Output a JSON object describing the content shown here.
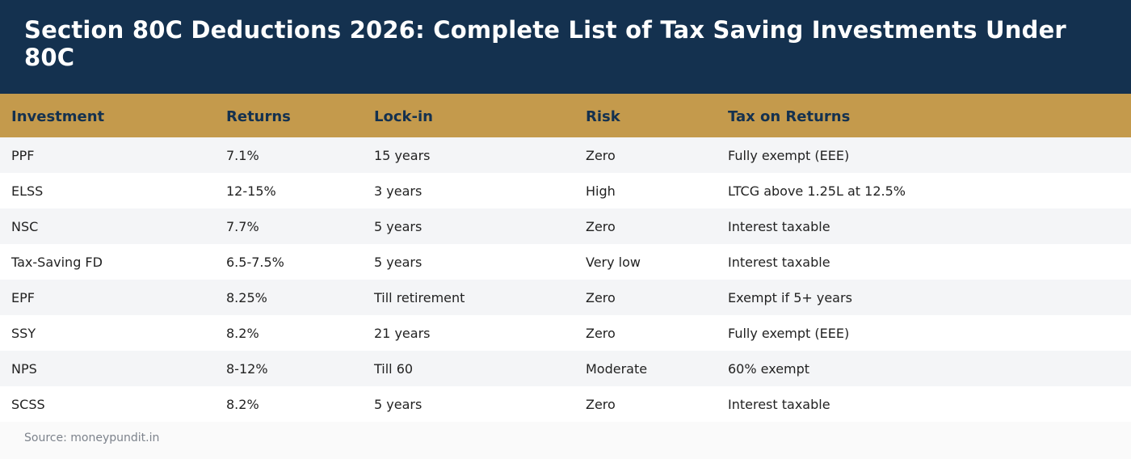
{
  "header": {
    "title": "Section 80C Deductions 2026: Complete List of Tax Saving Investments Under 80C"
  },
  "table": {
    "columns": [
      "Investment",
      "Returns",
      "Lock-in",
      "Risk",
      "Tax on Returns"
    ],
    "rows": [
      [
        "PPF",
        "7.1%",
        "15 years",
        "Zero",
        "Fully exempt (EEE)"
      ],
      [
        "ELSS",
        "12-15%",
        "3 years",
        "High",
        "LTCG above 1.25L at 12.5%"
      ],
      [
        "NSC",
        "7.7%",
        "5 years",
        "Zero",
        "Interest taxable"
      ],
      [
        "Tax-Saving FD",
        "6.5-7.5%",
        "5 years",
        "Very low",
        "Interest taxable"
      ],
      [
        "EPF",
        "8.25%",
        "Till retirement",
        "Zero",
        "Exempt if 5+ years"
      ],
      [
        "SSY",
        "8.2%",
        "21 years",
        "Zero",
        "Fully exempt (EEE)"
      ],
      [
        "NPS",
        "8-12%",
        "Till 60",
        "Moderate",
        "60% exempt"
      ],
      [
        "SCSS",
        "8.2%",
        "5 years",
        "Zero",
        "Interest taxable"
      ]
    ]
  },
  "footer": {
    "source": "Source: moneypundit.in"
  },
  "colors": {
    "header_bg": "#14314f",
    "table_header_bg": "#c49a4c",
    "row_alt_bg": "#f4f5f7"
  }
}
